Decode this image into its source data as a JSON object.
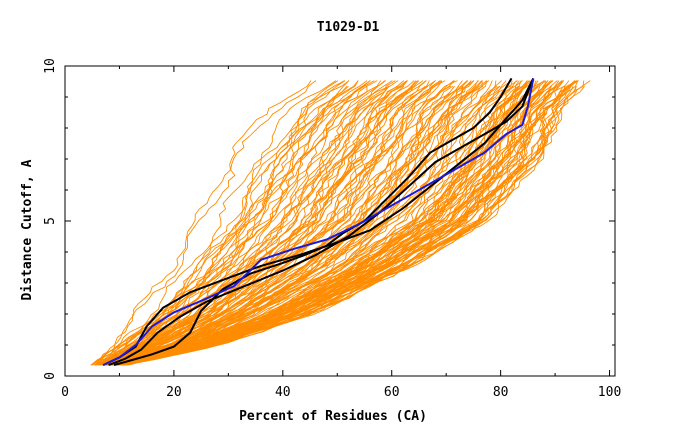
{
  "chart_data": {
    "type": "line",
    "title": "T1029-D1",
    "xlabel": "Percent of Residues (CA)",
    "ylabel": "Distance Cutoff, A",
    "xlim": [
      0,
      101
    ],
    "ylim": [
      0,
      10
    ],
    "x_ticks": [
      "0",
      "20",
      "40",
      "60",
      "80",
      "100"
    ],
    "y_ticks": [
      "0",
      "5",
      "10"
    ],
    "grid": false,
    "colors": {
      "background_models": "#ff8c00",
      "highlight_black": "#000000",
      "highlight_blue": "#1a1adc"
    },
    "background_envelope": {
      "note_left_x_at_y": [
        [
          5,
          0.4
        ],
        [
          8,
          1.0
        ],
        [
          13,
          2.0
        ],
        [
          19,
          3.5
        ],
        [
          24,
          5.0
        ],
        [
          30,
          7.0
        ],
        [
          37,
          8.6
        ],
        [
          45,
          9.6
        ]
      ],
      "note_right_x_at_y": [
        [
          12,
          0.4
        ],
        [
          28,
          1.0
        ],
        [
          45,
          2.0
        ],
        [
          63,
          3.5
        ],
        [
          77,
          5.0
        ],
        [
          87,
          7.0
        ],
        [
          91,
          8.6
        ],
        [
          96,
          9.6
        ]
      ]
    },
    "series": [
      {
        "color": "#000000",
        "points": [
          [
            7,
            0.35
          ],
          [
            10,
            0.6
          ],
          [
            13,
            0.95
          ],
          [
            15,
            1.6
          ],
          [
            18,
            2.2
          ],
          [
            23,
            2.7
          ],
          [
            29,
            3.1
          ],
          [
            36,
            3.55
          ],
          [
            43,
            3.9
          ],
          [
            49,
            4.25
          ],
          [
            56,
            4.7
          ],
          [
            62,
            5.4
          ],
          [
            67,
            6.1
          ],
          [
            72,
            6.8
          ],
          [
            77,
            7.5
          ],
          [
            81,
            8.3
          ],
          [
            84,
            8.9
          ],
          [
            86,
            9.6
          ]
        ]
      },
      {
        "color": "#000000",
        "points": [
          [
            8,
            0.35
          ],
          [
            11,
            0.55
          ],
          [
            14,
            0.85
          ],
          [
            17,
            1.4
          ],
          [
            21,
            1.9
          ],
          [
            26,
            2.4
          ],
          [
            33,
            2.9
          ],
          [
            40,
            3.4
          ],
          [
            46,
            3.9
          ],
          [
            52,
            4.5
          ],
          [
            58,
            5.3
          ],
          [
            63,
            6.1
          ],
          [
            68,
            6.9
          ],
          [
            73,
            7.4
          ],
          [
            77,
            7.8
          ],
          [
            81,
            8.2
          ],
          [
            84,
            8.7
          ],
          [
            86,
            9.6
          ]
        ]
      },
      {
        "color": "#000000",
        "points": [
          [
            9,
            0.35
          ],
          [
            12,
            0.5
          ],
          [
            16,
            0.7
          ],
          [
            20,
            0.95
          ],
          [
            23,
            1.4
          ],
          [
            25,
            2.1
          ],
          [
            29,
            2.8
          ],
          [
            34,
            3.3
          ],
          [
            40,
            3.65
          ],
          [
            44,
            3.9
          ],
          [
            48,
            4.2
          ],
          [
            51,
            4.6
          ],
          [
            55,
            5.0
          ],
          [
            59,
            5.7
          ],
          [
            63,
            6.4
          ],
          [
            67,
            7.2
          ],
          [
            71,
            7.6
          ],
          [
            75,
            8.0
          ],
          [
            78,
            8.5
          ],
          [
            80,
            9.0
          ],
          [
            82,
            9.6
          ]
        ]
      },
      {
        "color": "#1a1adc",
        "points": [
          [
            7,
            0.35
          ],
          [
            10,
            0.6
          ],
          [
            13,
            1.0
          ],
          [
            16,
            1.6
          ],
          [
            20,
            2.05
          ],
          [
            26,
            2.5
          ],
          [
            31,
            2.9
          ],
          [
            34,
            3.4
          ],
          [
            36,
            3.75
          ],
          [
            42,
            4.1
          ],
          [
            48,
            4.4
          ],
          [
            54,
            4.9
          ],
          [
            60,
            5.5
          ],
          [
            66,
            6.1
          ],
          [
            72,
            6.7
          ],
          [
            77,
            7.2
          ],
          [
            81,
            7.8
          ],
          [
            84,
            8.1
          ],
          [
            85,
            8.7
          ],
          [
            86,
            9.6
          ]
        ]
      }
    ]
  }
}
